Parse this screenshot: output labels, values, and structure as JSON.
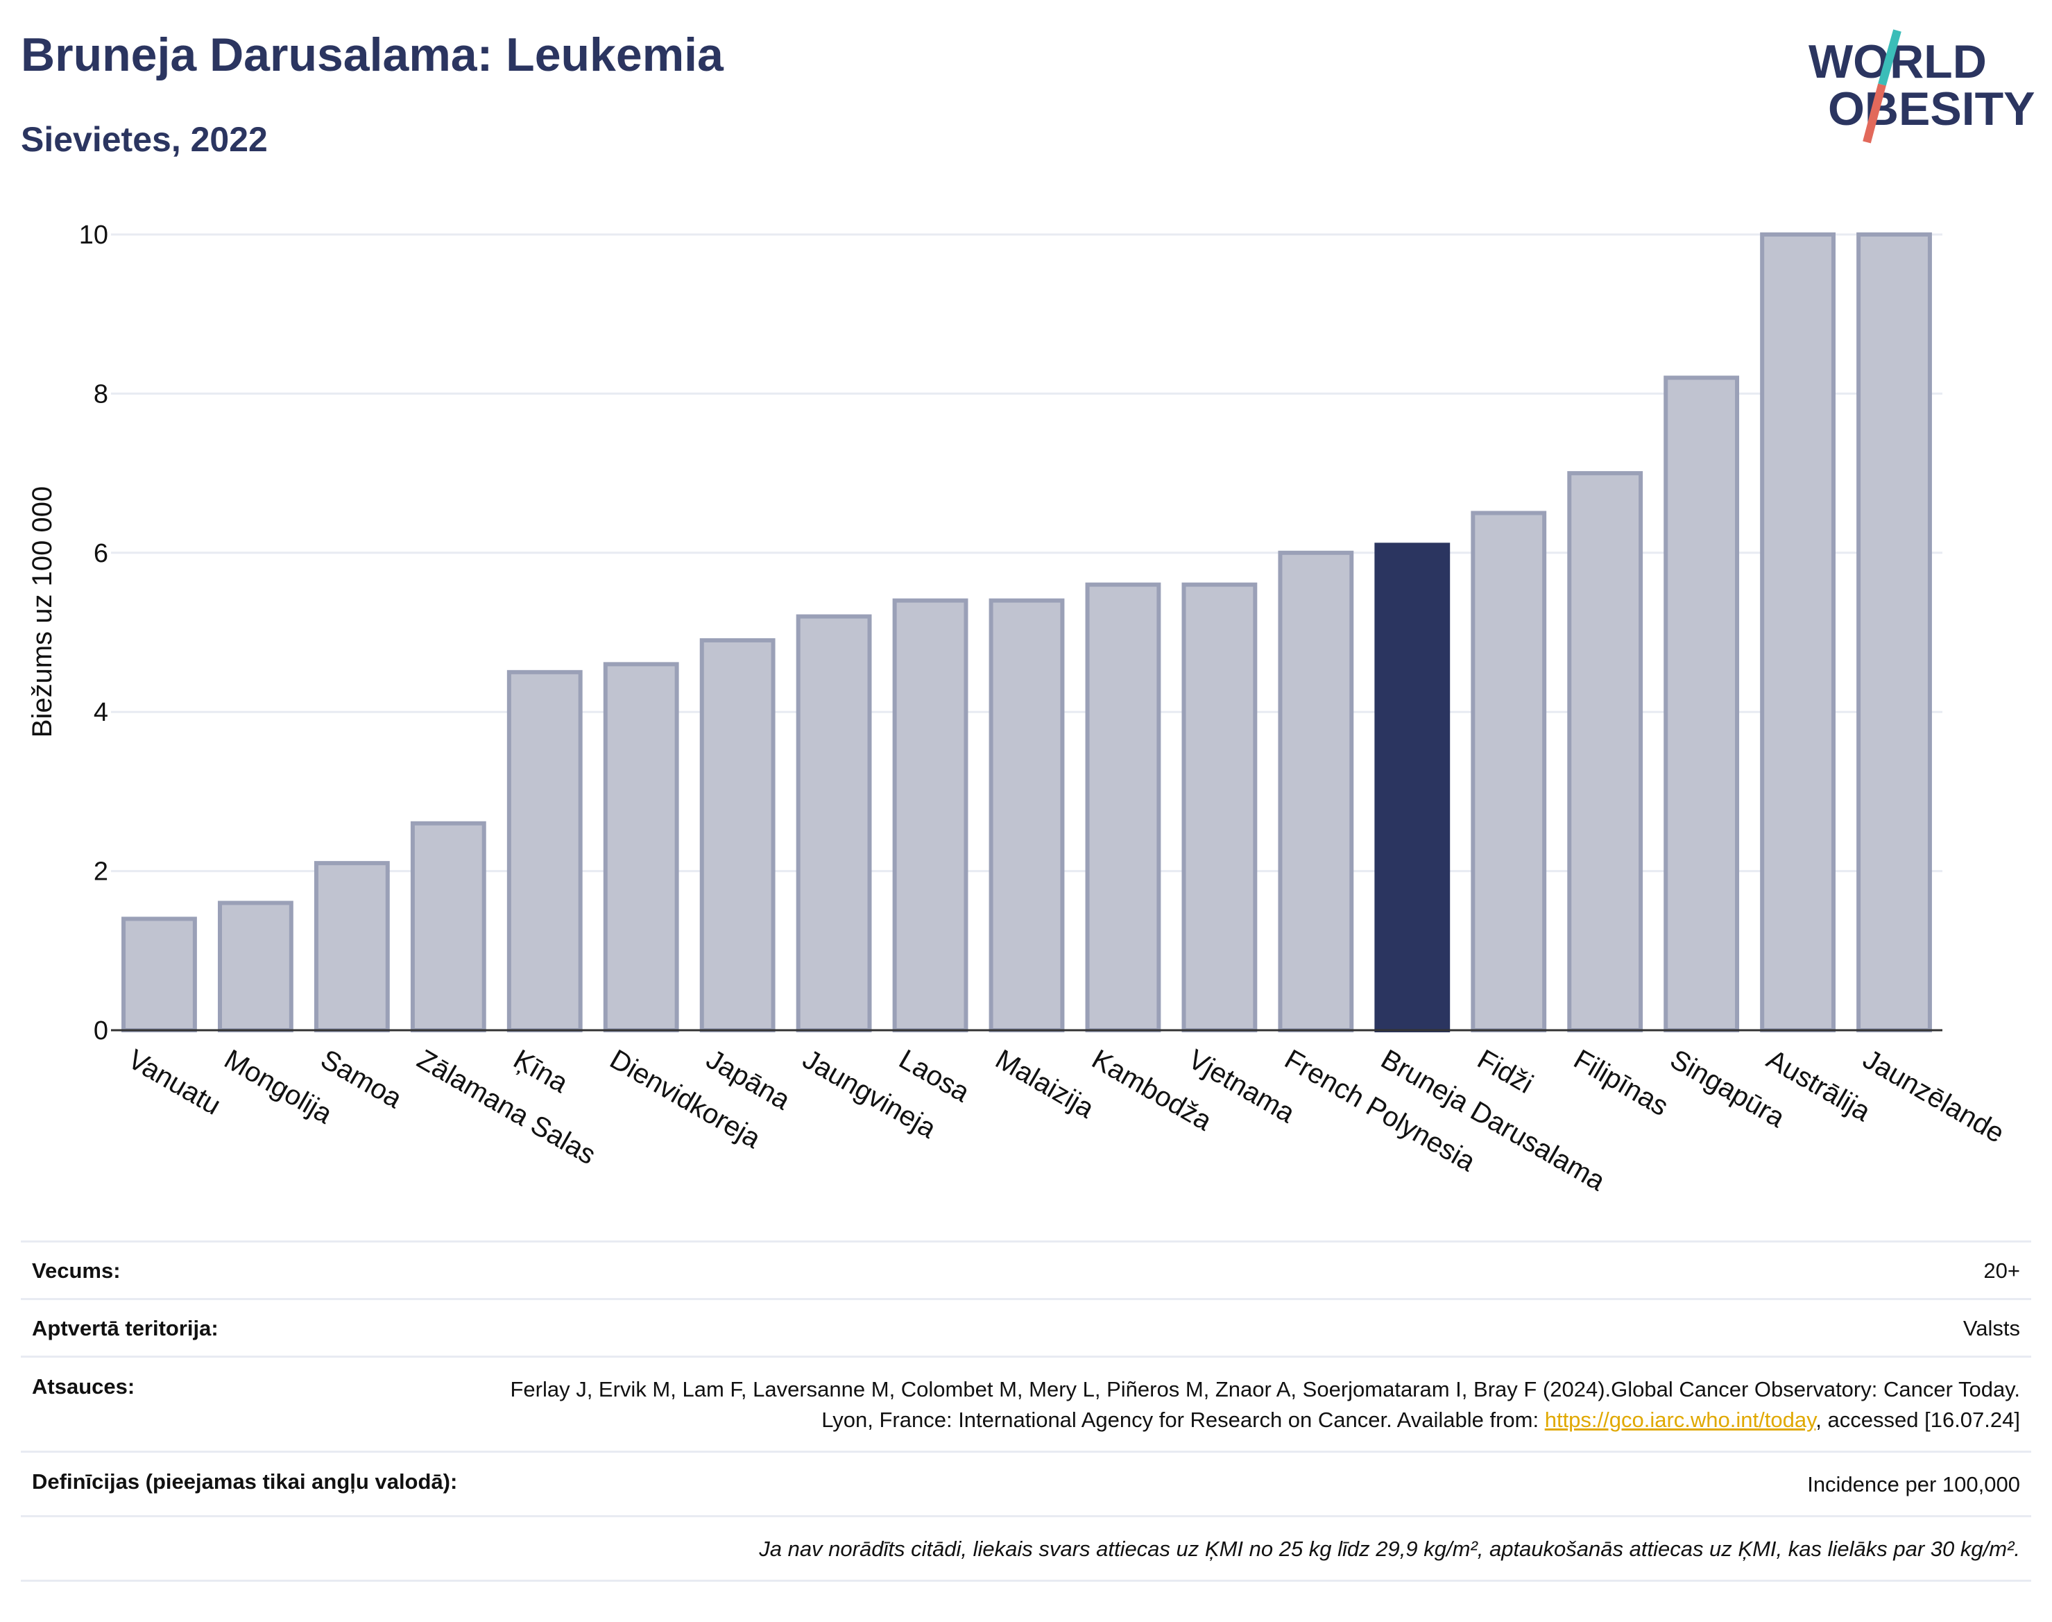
{
  "header": {
    "title": "Bruneja Darusalama: Leukemia",
    "subtitle": "Sievietes, 2022"
  },
  "logo": {
    "line1": "WORLD",
    "line2": "OBESITY"
  },
  "colors": {
    "highlight": "#2b3560",
    "bar": "#c0c3d0",
    "bar_stroke": "#9aa0b7",
    "grid": "#e8ebf2",
    "link": "#e0a800",
    "logo_teal": "#3bbdb8",
    "logo_red": "#e2695b"
  },
  "chart_data": {
    "type": "bar",
    "ylabel": "Biežums uz 100 000",
    "ylim": [
      0,
      10
    ],
    "yticks": [
      0,
      2,
      4,
      6,
      8,
      10
    ],
    "grid": true,
    "highlight": "Bruneja Darusalama",
    "categories": [
      "Vanuatu",
      "Mongolija",
      "Samoa",
      "Zālamana Salas",
      "Ķīna",
      "Dienvidkoreja",
      "Japāna",
      "Jaungvineja",
      "Laosa",
      "Malaizija",
      "Kambodža",
      "Vjetnama",
      "French Polynesia",
      "Bruneja Darusalama",
      "Fidži",
      "Filipīnas",
      "Singapūra",
      "Austrālija",
      "Jaunzēlande"
    ],
    "values": [
      1.4,
      1.6,
      2.1,
      2.6,
      4.5,
      4.6,
      4.9,
      5.2,
      5.4,
      5.4,
      5.6,
      5.6,
      6.0,
      6.1,
      6.5,
      7.0,
      8.2,
      10.0,
      10.0
    ]
  },
  "info": {
    "age_label": "Vecums:",
    "age_value": "20+",
    "coverage_label": "Aptvertā teritorija:",
    "coverage_value": "Valsts",
    "refs_label": "Atsauces:",
    "refs_text_1": "Ferlay J, Ervik M, Lam F, Laversanne M, Colombet M, Mery L, Piñeros M, Znaor A, Soerjomataram I, Bray F (2024).Global Cancer Observatory: Cancer Today. Lyon, France: International Agency for Research on Cancer. Available from: ",
    "refs_link": "https://gco.iarc.who.int/today",
    "refs_text_2": ", accessed [16.07.24]",
    "defs_label": "Definīcijas (pieejamas tikai angļu valodā):",
    "defs_value": "Incidence per 100,000",
    "note": "Ja nav norādīts citādi, liekais svars attiecas uz ĶMI no 25 kg līdz 29,9 kg/m², aptaukošanās attiecas uz ĶMI, kas lielāks par 30 kg/m²."
  }
}
